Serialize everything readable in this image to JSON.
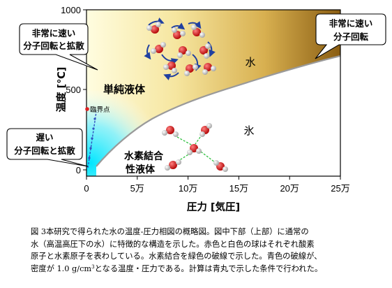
{
  "axes": {
    "ylabel": "温度 [℃]",
    "xlabel": "圧力 [気圧]",
    "y_ticks": [
      "1000",
      "500",
      "0"
    ],
    "x_ticks": [
      "0",
      "5万",
      "10万",
      "15万",
      "20万",
      "25万"
    ]
  },
  "regions": {
    "water": "水",
    "ice": "氷",
    "simple_liquid": "単純液体",
    "hb_liquid_line1": "水素結合",
    "hb_liquid_line2": "性液体",
    "critical_point": "臨界点"
  },
  "callouts": {
    "left_top": [
      "非常に速い",
      "分子回転と拡散"
    ],
    "left_bottom": [
      "遅い",
      "分子回転と拡散"
    ],
    "right_top": [
      "非常に速い",
      "分子回転"
    ]
  },
  "caption": {
    "figure_label": "図 3",
    "lines": [
      "本研究で得られた水の温度-圧力相図の概略図。図中下部（上部）に通常の",
      "水（高温高圧下の水）に特徴的な構造を示した。赤色と白色の球はそれぞれ酸素",
      "原子と水素原子を表わしている。水素結合を緑色の破線で示した。青色の破線が、",
      "密度が 1.0 g/cm",
      "となる温度・圧力である。計算は青丸で示した条件で行われた。"
    ],
    "superscript": "3"
  },
  "colors": {
    "gold_dark": "#8a5d12",
    "gold_light": "#fffbd0",
    "cyan": "#00e8ff",
    "ice": "#ffffff",
    "boundary": "#9a9a9a",
    "critical_marker": "#e02020",
    "density_line": "#3050c0",
    "oxygen": "#d01818",
    "hydrogen": "#e8e8e8",
    "hbond": "#30c040",
    "rotation_arrow": "#2040a0"
  }
}
